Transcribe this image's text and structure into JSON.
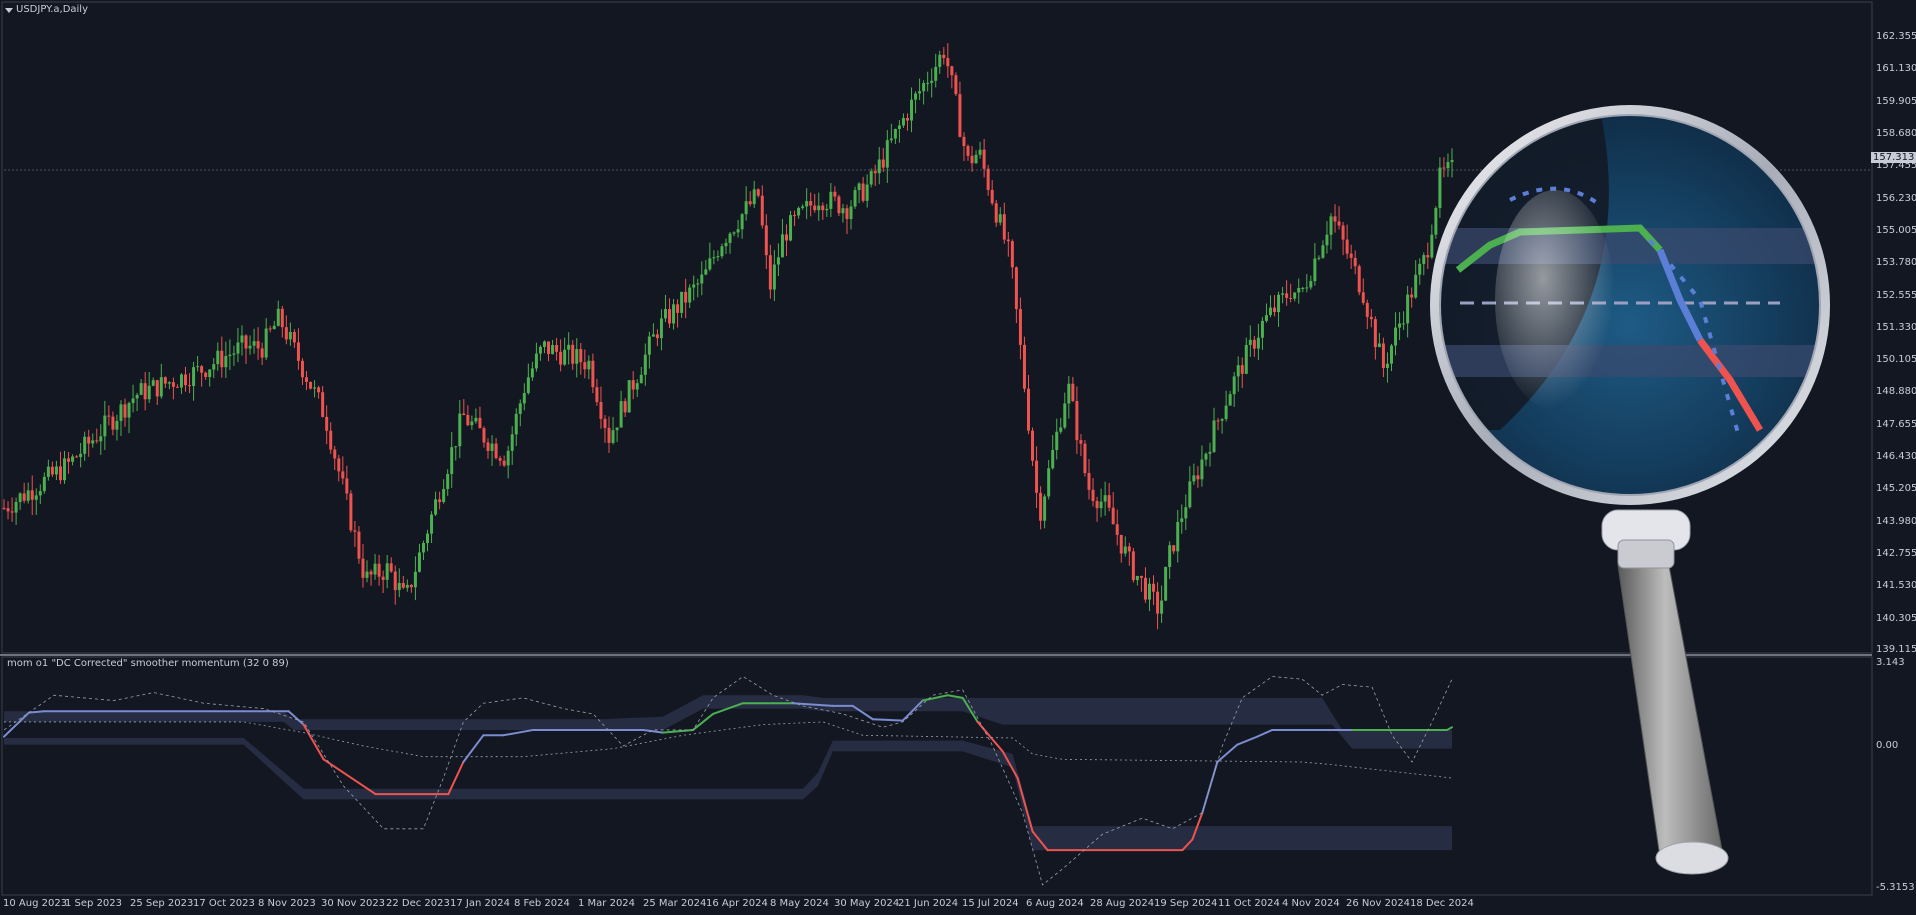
{
  "window": {
    "symbol_title": "USDJPY.a,Daily"
  },
  "indicator": {
    "title": "mom o1 \"DC Corrected\" smoother momentum (32 0 89)"
  },
  "colors": {
    "background": "#131722",
    "up": "#4caf50",
    "down": "#ef5350",
    "neutral_line": "#7b8cd0",
    "band": "#2a3148",
    "text": "#c8ccd6",
    "grid_dash": "#9aa0ad"
  },
  "icons": {
    "magnifier": "magnifying-glass-icon",
    "collapse": "triangle-down-icon"
  },
  "chart_data": [
    {
      "type": "candlestick",
      "title": "USDJPY.a,Daily",
      "ylim": [
        139.115,
        163.0
      ],
      "y_ticks": [
        "162.355",
        "161.130",
        "159.905",
        "158.680",
        "157.455",
        "156.230",
        "155.005",
        "153.780",
        "152.555",
        "151.330",
        "150.105",
        "148.880",
        "147.655",
        "146.430",
        "145.205",
        "143.980",
        "142.755",
        "141.530",
        "140.305",
        "139.115"
      ],
      "current_price": "157.313",
      "x_ticks": [
        "10 Aug 2023",
        "1 Sep 2023",
        "25 Sep 2023",
        "17 Oct 2023",
        "8 Nov 2023",
        "30 Nov 2023",
        "22 Dec 2023",
        "17 Jan 2024",
        "8 Feb 2024",
        "1 Mar 2024",
        "25 Mar 2024",
        "16 Apr 2024",
        "8 May 2024",
        "30 May 2024",
        "21 Jun 2024",
        "15 Jul 2024",
        "6 Aug 2024",
        "28 Aug 2024",
        "19 Sep 2024",
        "11 Oct 2024",
        "4 Nov 2024",
        "26 Nov 2024",
        "18 Dec 2024"
      ],
      "price_path": [
        [
          "2023-08-10",
          144.5
        ],
        [
          "2023-09-01",
          146.1
        ],
        [
          "2023-09-25",
          148.8
        ],
        [
          "2023-10-17",
          149.7
        ],
        [
          "2023-11-01",
          150.6
        ],
        [
          "2023-11-08",
          150.6
        ],
        [
          "2023-11-14",
          151.7
        ],
        [
          "2023-11-30",
          148.0
        ],
        [
          "2023-12-14",
          141.8
        ],
        [
          "2023-12-22",
          142.2
        ],
        [
          "2023-12-28",
          141.0
        ],
        [
          "2024-01-17",
          148.0
        ],
        [
          "2024-02-01",
          146.4
        ],
        [
          "2024-02-08",
          149.3
        ],
        [
          "2024-02-14",
          150.6
        ],
        [
          "2024-03-01",
          150.0
        ],
        [
          "2024-03-08",
          147.2
        ],
        [
          "2024-03-25",
          151.3
        ],
        [
          "2024-04-10",
          153.2
        ],
        [
          "2024-04-16",
          154.6
        ],
        [
          "2024-04-29",
          156.4
        ],
        [
          "2024-05-03",
          152.8
        ],
        [
          "2024-05-08",
          154.9
        ],
        [
          "2024-05-20",
          156.3
        ],
        [
          "2024-05-30",
          155.9
        ],
        [
          "2024-06-07",
          156.8
        ],
        [
          "2024-06-21",
          159.7
        ],
        [
          "2024-07-01",
          161.5
        ],
        [
          "2024-07-03",
          161.9
        ],
        [
          "2024-07-11",
          157.6
        ],
        [
          "2024-07-15",
          158.0
        ],
        [
          "2024-07-26",
          153.9
        ],
        [
          "2024-08-05",
          144.2
        ],
        [
          "2024-08-15",
          149.2
        ],
        [
          "2024-08-22",
          145.3
        ],
        [
          "2024-08-28",
          144.6
        ],
        [
          "2024-09-06",
          142.3
        ],
        [
          "2024-09-16",
          140.6
        ],
        [
          "2024-09-19",
          142.5
        ],
        [
          "2024-09-25",
          144.7
        ],
        [
          "2024-10-03",
          146.9
        ],
        [
          "2024-10-11",
          149.1
        ],
        [
          "2024-10-22",
          151.5
        ],
        [
          "2024-11-01",
          152.8
        ],
        [
          "2024-11-04",
          152.5
        ],
        [
          "2024-11-08",
          153.6
        ],
        [
          "2024-11-15",
          155.6
        ],
        [
          "2024-11-26",
          152.7
        ],
        [
          "2024-12-03",
          149.8
        ],
        [
          "2024-12-10",
          151.9
        ],
        [
          "2024-12-18",
          154.1
        ],
        [
          "2024-12-23",
          157.1
        ],
        [
          "2024-12-27",
          157.3
        ]
      ]
    },
    {
      "type": "line",
      "title": "mom o1 \"DC Corrected\" smoother momentum (32 0 89)",
      "ylim": [
        -5.3153,
        3.143
      ],
      "y_ticks": [
        "3.143",
        "0.00",
        "-5.3153"
      ],
      "momentum": [
        [
          0,
          0.35
        ],
        [
          25,
          1.25
        ],
        [
          40,
          1.3
        ],
        [
          120,
          1.3
        ],
        [
          240,
          1.3
        ],
        [
          285,
          1.3
        ],
        [
          300,
          0.8
        ],
        [
          320,
          -0.5
        ],
        [
          340,
          -1.0
        ],
        [
          372,
          -1.8
        ],
        [
          445,
          -1.8
        ],
        [
          460,
          -0.6
        ],
        [
          480,
          0.4
        ],
        [
          500,
          0.4
        ],
        [
          530,
          0.6
        ],
        [
          600,
          0.6
        ],
        [
          640,
          0.6
        ],
        [
          660,
          0.5
        ],
        [
          690,
          0.6
        ],
        [
          710,
          1.2
        ],
        [
          740,
          1.6
        ],
        [
          770,
          1.6
        ],
        [
          790,
          1.6
        ],
        [
          830,
          1.5
        ],
        [
          850,
          1.5
        ],
        [
          870,
          1.0
        ],
        [
          900,
          0.95
        ],
        [
          920,
          1.7
        ],
        [
          945,
          1.9
        ],
        [
          960,
          1.8
        ],
        [
          975,
          0.9
        ],
        [
          1000,
          -0.2
        ],
        [
          1015,
          -1.2
        ],
        [
          1030,
          -3.2
        ],
        [
          1045,
          -3.9
        ],
        [
          1180,
          -3.9
        ],
        [
          1190,
          -3.5
        ],
        [
          1200,
          -2.5
        ],
        [
          1215,
          -0.6
        ],
        [
          1235,
          0.05
        ],
        [
          1255,
          0.35
        ],
        [
          1270,
          0.6
        ],
        [
          1290,
          0.6
        ],
        [
          1350,
          0.6
        ],
        [
          1420,
          0.6
        ],
        [
          1445,
          0.6
        ],
        [
          1450,
          0.7
        ]
      ],
      "momentum_colors": [
        "neutral",
        "neutral",
        "neutral",
        "neutral",
        "neutral",
        "neutral",
        "down",
        "down",
        "down",
        "down",
        "down",
        "neutral",
        "neutral",
        "neutral",
        "neutral",
        "neutral",
        "neutral",
        "up",
        "up",
        "up",
        "up",
        "up",
        "neutral",
        "neutral",
        "neutral",
        "neutral",
        "neutral",
        "up",
        "up",
        "up",
        "down",
        "down",
        "down",
        "down",
        "down",
        "down",
        "down",
        "neutral",
        "neutral",
        "neutral",
        "neutral",
        "neutral",
        "neutral",
        "up",
        "up",
        "up",
        "up"
      ],
      "signal_dashed": [
        [
          0,
          0.6
        ],
        [
          50,
          1.9
        ],
        [
          110,
          1.7
        ],
        [
          150,
          2.0
        ],
        [
          200,
          1.6
        ],
        [
          260,
          1.4
        ],
        [
          300,
          0.9
        ],
        [
          340,
          -1.5
        ],
        [
          380,
          -3.1
        ],
        [
          420,
          -3.1
        ],
        [
          440,
          -1.2
        ],
        [
          460,
          0.9
        ],
        [
          480,
          1.6
        ],
        [
          520,
          1.8
        ],
        [
          560,
          1.4
        ],
        [
          590,
          1.2
        ],
        [
          620,
          0.0
        ],
        [
          650,
          0.6
        ],
        [
          690,
          0.6
        ],
        [
          710,
          1.8
        ],
        [
          740,
          2.6
        ],
        [
          770,
          1.9
        ],
        [
          800,
          1.5
        ],
        [
          840,
          1.2
        ],
        [
          880,
          0.7
        ],
        [
          900,
          0.9
        ],
        [
          930,
          1.9
        ],
        [
          960,
          2.1
        ],
        [
          990,
          0.0
        ],
        [
          1020,
          -2.5
        ],
        [
          1040,
          -5.2
        ],
        [
          1060,
          -4.6
        ],
        [
          1100,
          -3.3
        ],
        [
          1140,
          -2.7
        ],
        [
          1170,
          -3.1
        ],
        [
          1200,
          -2.5
        ],
        [
          1220,
          0.0
        ],
        [
          1240,
          1.8
        ],
        [
          1270,
          2.6
        ],
        [
          1300,
          2.5
        ],
        [
          1320,
          1.9
        ],
        [
          1340,
          2.3
        ],
        [
          1370,
          2.2
        ],
        [
          1390,
          0.4
        ],
        [
          1410,
          -0.6
        ],
        [
          1430,
          0.9
        ],
        [
          1450,
          2.5
        ]
      ],
      "mid_dashed": [
        [
          0,
          0.9
        ],
        [
          240,
          0.9
        ],
        [
          300,
          0.5
        ],
        [
          360,
          0.0
        ],
        [
          420,
          -0.4
        ],
        [
          520,
          -0.4
        ],
        [
          610,
          -0.1
        ],
        [
          680,
          0.4
        ],
        [
          760,
          0.8
        ],
        [
          820,
          0.9
        ],
        [
          860,
          0.4
        ],
        [
          1010,
          0.3
        ],
        [
          1030,
          -0.3
        ],
        [
          1060,
          -0.5
        ],
        [
          1300,
          -0.6
        ],
        [
          1330,
          -0.7
        ],
        [
          1450,
          -1.2
        ]
      ],
      "upper_band": [
        [
          0,
          1.3
        ],
        [
          280,
          1.3
        ],
        [
          290,
          1.0
        ],
        [
          430,
          1.0
        ],
        [
          600,
          1.0
        ],
        [
          660,
          1.1
        ],
        [
          700,
          1.9
        ],
        [
          800,
          1.9
        ],
        [
          820,
          1.8
        ],
        [
          960,
          1.8
        ],
        [
          1000,
          1.8
        ],
        [
          1320,
          1.8
        ],
        [
          1340,
          0.6
        ],
        [
          1450,
          0.6
        ]
      ],
      "upper_band_inner": [
        [
          0,
          0.9
        ],
        [
          280,
          0.9
        ],
        [
          290,
          0.6
        ],
        [
          430,
          0.6
        ],
        [
          600,
          0.6
        ],
        [
          660,
          0.6
        ],
        [
          700,
          1.4
        ],
        [
          800,
          1.4
        ],
        [
          820,
          1.3
        ],
        [
          960,
          1.3
        ],
        [
          1000,
          0.8
        ],
        [
          1330,
          0.8
        ],
        [
          1350,
          -0.1
        ],
        [
          1450,
          -0.1
        ]
      ],
      "lower_band": [
        [
          0,
          0.3
        ],
        [
          120,
          0.3
        ],
        [
          240,
          0.3
        ],
        [
          300,
          -1.6
        ],
        [
          380,
          -1.6
        ],
        [
          800,
          -1.6
        ],
        [
          815,
          -1.0
        ],
        [
          830,
          0.2
        ],
        [
          960,
          0.2
        ],
        [
          1010,
          -0.3
        ],
        [
          1030,
          -3.0
        ],
        [
          1330,
          -3.0
        ],
        [
          1450,
          -3.0
        ]
      ],
      "lower_band_inner": [
        [
          0,
          0.05
        ],
        [
          120,
          0.05
        ],
        [
          240,
          0.05
        ],
        [
          300,
          -2.0
        ],
        [
          380,
          -2.0
        ],
        [
          800,
          -2.0
        ],
        [
          815,
          -1.5
        ],
        [
          830,
          -0.2
        ],
        [
          960,
          -0.2
        ],
        [
          1010,
          -0.8
        ],
        [
          1030,
          -3.9
        ],
        [
          1330,
          -3.9
        ],
        [
          1450,
          -3.9
        ]
      ],
      "x_units_note_hidden": ""
    }
  ]
}
